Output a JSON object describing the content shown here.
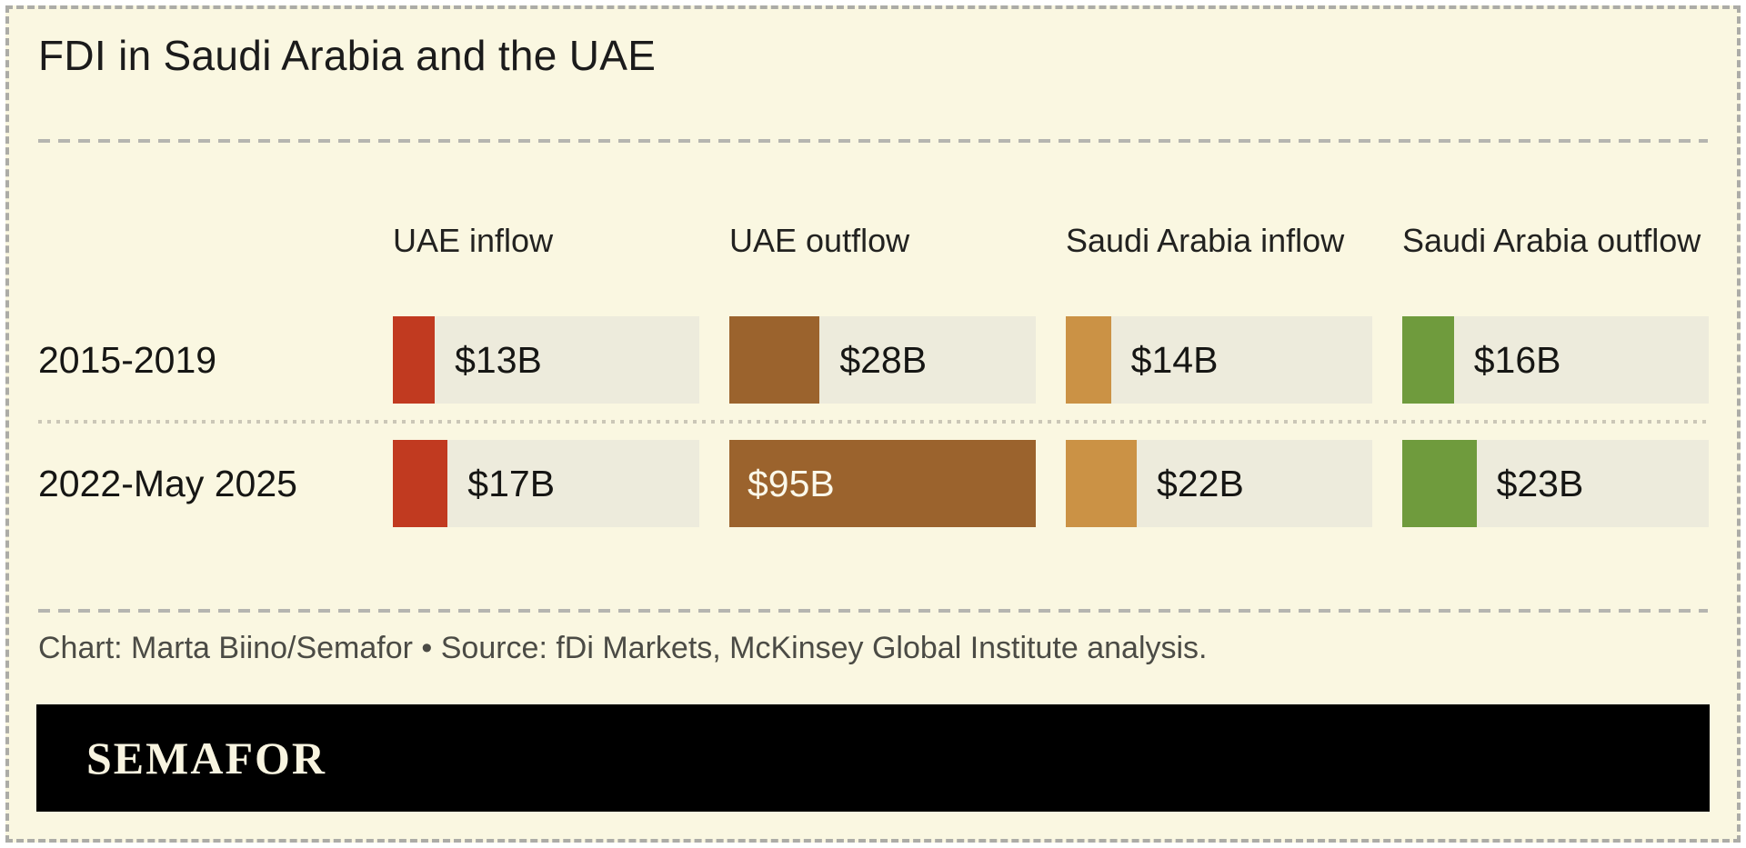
{
  "title": "FDI in Saudi Arabia and the UAE",
  "credit": "Chart: Marta Biino/Semafor • Source: fDi Markets, McKinsey Global Institute analysis.",
  "logo_text": "SEMAFOR",
  "colors": {
    "background": "#FAF7E1",
    "bar_track": "#EDEBDC",
    "uae_inflow": "#C13A20",
    "uae_outflow": "#9B632D",
    "saudi_arabia_inflow": "#CB9245",
    "saudi_arabia_outflow": "#6F9B3D",
    "logo_bar": "#000000",
    "logo_text": "#F8F4E0"
  },
  "chart_data": {
    "type": "bar",
    "orientation": "horizontal",
    "title": "FDI in Saudi Arabia and the UAE",
    "categories": [
      "2015-2019",
      "2022-May 2025"
    ],
    "series": [
      {
        "name": "UAE inflow",
        "color": "#C13A20",
        "values": [
          13,
          17
        ],
        "labels": [
          "$13B",
          "$17B"
        ]
      },
      {
        "name": "UAE outflow",
        "color": "#9B632D",
        "values": [
          28,
          95
        ],
        "labels": [
          "$28B",
          "$95B"
        ]
      },
      {
        "name": "Saudi Arabia inflow",
        "color": "#CB9245",
        "values": [
          14,
          22
        ],
        "labels": [
          "$14B",
          "$22B"
        ]
      },
      {
        "name": "Saudi Arabia outflow",
        "color": "#6F9B3D",
        "values": [
          16,
          23
        ],
        "labels": [
          "$16B",
          "$23B"
        ]
      }
    ],
    "unit": "$B",
    "xlim": [
      0,
      95
    ],
    "grid": false,
    "legend_position": "column-headers"
  }
}
